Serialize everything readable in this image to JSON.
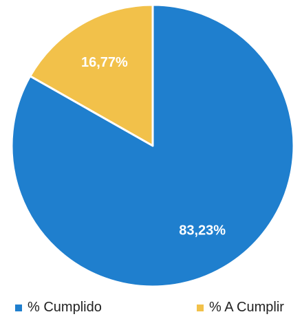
{
  "chart_data": {
    "type": "pie",
    "slices": [
      {
        "label": "% Cumplido",
        "value": 83.23,
        "value_label": "83,23%",
        "color": "#1f7fce"
      },
      {
        "label": "% A Cumplir",
        "value": 16.77,
        "value_label": "16,77%",
        "color": "#f2c14a"
      }
    ],
    "start": "top",
    "direction": "clockwise",
    "slice_border_color": "#ffffff",
    "legend_position": "bottom"
  }
}
